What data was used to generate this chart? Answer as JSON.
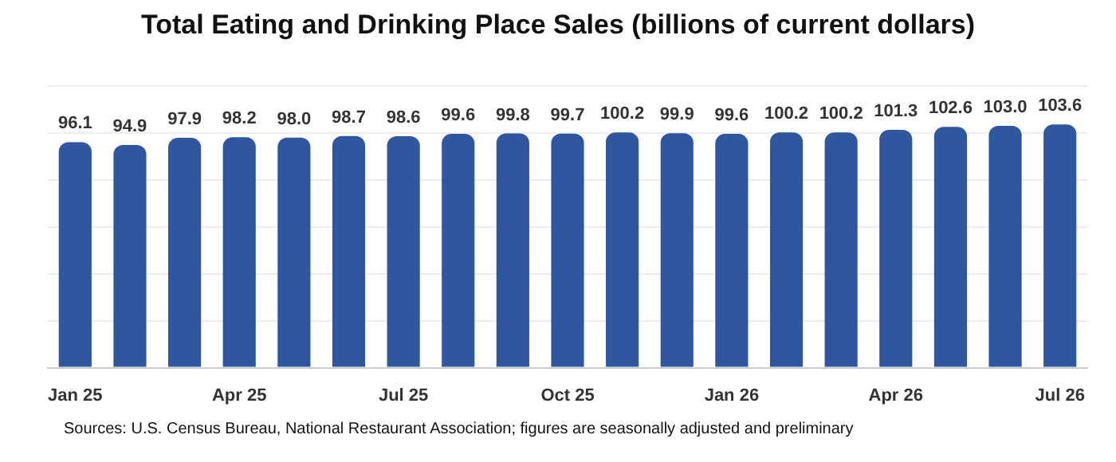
{
  "chart_data": {
    "type": "bar",
    "title": "Total Eating and Drinking Place Sales (billions of current dollars)",
    "categories": [
      "Jan 25",
      null,
      null,
      "Apr 25",
      null,
      null,
      "Jul 25",
      null,
      null,
      "Oct 25",
      null,
      null,
      "Jan 26",
      null,
      null,
      "Apr 26",
      null,
      null,
      "Jul 26"
    ],
    "values": [
      96.1,
      94.9,
      97.9,
      98.2,
      98.0,
      98.7,
      98.6,
      99.6,
      99.8,
      99.7,
      100.2,
      99.9,
      99.6,
      100.2,
      100.2,
      101.3,
      102.6,
      103.0,
      103.6
    ],
    "value_labels": [
      "96.1",
      "94.9",
      "97.9",
      "98.2",
      "98.0",
      "98.7",
      "98.6",
      "99.6",
      "99.8",
      "99.7",
      "100.2",
      "99.9",
      "99.6",
      "100.2",
      "100.2",
      "101.3",
      "102.6",
      "103.0",
      "103.6"
    ],
    "color": "#2f57a0",
    "grid": "y",
    "tick_labels": "x",
    "legend": false,
    "annotations": [
      "Sources: U.S. Census Bureau, National Restaurant Association; figures are seasonally adjusted and preliminary"
    ]
  }
}
